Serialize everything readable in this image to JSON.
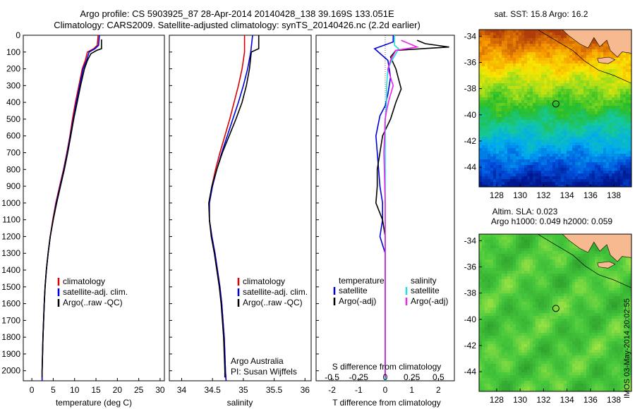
{
  "header": {
    "line1": "Argo profile: CS 5903925_87 28-Apr-2014 20140428_138 39.169S 133.051E",
    "line2": "Climatology: CARS2009. Satellite-adjusted climatology: synTS_20140426.nc (2.2d earlier)"
  },
  "colors": {
    "climatology": "#dd0000",
    "satellite": "#0000dd",
    "argo": "#000000",
    "sal_satellite": "#22dddd",
    "sal_argo": "#ee22ee",
    "land": "#f6b990"
  },
  "depth_ticks": [
    "0",
    "100",
    "200",
    "300",
    "400",
    "500",
    "600",
    "700",
    "800",
    "900",
    "1000",
    "1100",
    "1200",
    "1300",
    "1400",
    "1500",
    "1600",
    "1700",
    "1800",
    "1900",
    "2000"
  ],
  "chart_data": [
    {
      "type": "line",
      "id": "temperature",
      "xlabel": "temperature (deg C)",
      "x_ticks": [
        "0",
        "5",
        "10",
        "15",
        "20",
        "25",
        "30"
      ],
      "xlim": [
        -2,
        31
      ],
      "ylim": [
        2060,
        0
      ],
      "legend": [
        "climatology",
        "satellite-adj. clim.",
        "Argo(..raw -QC)"
      ],
      "legend_position": "lower-center",
      "series": [
        {
          "name": "climatology",
          "points": [
            [
              15.5,
              0
            ],
            [
              15.3,
              60
            ],
            [
              14.5,
              80
            ],
            [
              13,
              100
            ],
            [
              12.5,
              150
            ],
            [
              11.8,
              200
            ],
            [
              11,
              300
            ],
            [
              10.2,
              400
            ],
            [
              9.5,
              500
            ],
            [
              8.9,
              600
            ],
            [
              8.2,
              700
            ],
            [
              7.4,
              800
            ],
            [
              6.5,
              900
            ],
            [
              5.6,
              1000
            ],
            [
              4.9,
              1100
            ],
            [
              4.3,
              1200
            ],
            [
              3.8,
              1300
            ],
            [
              3.4,
              1400
            ],
            [
              3.1,
              1500
            ],
            [
              2.9,
              1600
            ],
            [
              2.75,
              1700
            ],
            [
              2.6,
              1800
            ],
            [
              2.5,
              1900
            ],
            [
              2.4,
              2000
            ],
            [
              2.4,
              2060
            ]
          ]
        },
        {
          "name": "satellite-adj. clim.",
          "points": [
            [
              15.8,
              0
            ],
            [
              15.6,
              60
            ],
            [
              14.8,
              80
            ],
            [
              13.4,
              100
            ],
            [
              12.8,
              150
            ],
            [
              12,
              200
            ],
            [
              11.2,
              300
            ],
            [
              10.4,
              400
            ],
            [
              9.7,
              500
            ],
            [
              9,
              600
            ],
            [
              8.3,
              700
            ],
            [
              7.5,
              800
            ],
            [
              6.6,
              900
            ],
            [
              5.7,
              1000
            ],
            [
              5,
              1100
            ],
            [
              4.3,
              1200
            ],
            [
              3.8,
              1300
            ],
            [
              3.4,
              1400
            ],
            [
              3.1,
              1500
            ],
            [
              2.9,
              1600
            ],
            [
              2.75,
              1700
            ],
            [
              2.6,
              1800
            ],
            [
              2.5,
              1900
            ],
            [
              2.4,
              2000
            ],
            [
              2.4,
              2060
            ]
          ]
        },
        {
          "name": "Argo(..raw -QC)",
          "points": [
            [
              16.3,
              25
            ],
            [
              16.3,
              80
            ],
            [
              15.2,
              90
            ],
            [
              13.8,
              110
            ],
            [
              13,
              150
            ],
            [
              12.3,
              200
            ],
            [
              11.4,
              300
            ],
            [
              10.6,
              400
            ],
            [
              9.8,
              500
            ],
            [
              9.1,
              600
            ],
            [
              8.4,
              700
            ],
            [
              7.6,
              800
            ],
            [
              6.7,
              900
            ],
            [
              5.8,
              1000
            ],
            [
              5,
              1100
            ],
            [
              4.3,
              1200
            ],
            [
              3.8,
              1300
            ],
            [
              3.4,
              1400
            ],
            [
              3.1,
              1500
            ],
            [
              2.9,
              1600
            ],
            [
              2.75,
              1700
            ],
            [
              2.6,
              1800
            ],
            [
              2.5,
              1900
            ],
            [
              2.4,
              2000
            ],
            [
              2.4,
              2040
            ]
          ]
        }
      ]
    },
    {
      "type": "line",
      "id": "salinity",
      "xlabel": "salinity",
      "x_ticks": [
        "34",
        "34.5",
        "35",
        "35.5",
        "36"
      ],
      "xlim": [
        33.8,
        36.1
      ],
      "ylim": [
        2060,
        0
      ],
      "legend": [
        "climatology",
        "satellite-adj. clim.",
        "Argo(..raw -QC)"
      ],
      "legend_position": "lower-center",
      "annotations": [
        "Argo Australia",
        "PI: Susan Wijffels"
      ],
      "series": [
        {
          "name": "climatology",
          "points": [
            [
              35.02,
              0
            ],
            [
              35.02,
              100
            ],
            [
              34.98,
              200
            ],
            [
              34.92,
              300
            ],
            [
              34.85,
              400
            ],
            [
              34.78,
              500
            ],
            [
              34.7,
              600
            ],
            [
              34.62,
              700
            ],
            [
              34.55,
              800
            ],
            [
              34.49,
              900
            ],
            [
              34.45,
              1000
            ],
            [
              34.45,
              1100
            ],
            [
              34.49,
              1200
            ],
            [
              34.54,
              1300
            ],
            [
              34.58,
              1400
            ],
            [
              34.62,
              1500
            ],
            [
              34.65,
              1600
            ],
            [
              34.67,
              1700
            ],
            [
              34.69,
              1800
            ],
            [
              34.7,
              1900
            ],
            [
              34.71,
              2000
            ],
            [
              34.72,
              2060
            ]
          ]
        },
        {
          "name": "satellite-adj. clim.",
          "points": [
            [
              35.15,
              0
            ],
            [
              35.12,
              100
            ],
            [
              35.07,
              200
            ],
            [
              35,
              300
            ],
            [
              34.92,
              400
            ],
            [
              34.83,
              500
            ],
            [
              34.74,
              600
            ],
            [
              34.65,
              700
            ],
            [
              34.57,
              800
            ],
            [
              34.5,
              900
            ],
            [
              34.45,
              1000
            ],
            [
              34.45,
              1100
            ],
            [
              34.49,
              1200
            ],
            [
              34.54,
              1300
            ],
            [
              34.58,
              1400
            ],
            [
              34.62,
              1500
            ],
            [
              34.65,
              1600
            ],
            [
              34.67,
              1700
            ],
            [
              34.69,
              1800
            ],
            [
              34.7,
              1900
            ],
            [
              34.71,
              2000
            ],
            [
              34.72,
              2060
            ]
          ]
        },
        {
          "name": "Argo(..raw -QC)",
          "points": [
            [
              35.25,
              0
            ],
            [
              35.25,
              80
            ],
            [
              35.13,
              100
            ],
            [
              35.1,
              200
            ],
            [
              35.05,
              300
            ],
            [
              34.98,
              400
            ],
            [
              34.88,
              500
            ],
            [
              34.77,
              600
            ],
            [
              34.66,
              700
            ],
            [
              34.57,
              800
            ],
            [
              34.49,
              900
            ],
            [
              34.44,
              1000
            ],
            [
              34.45,
              1100
            ],
            [
              34.48,
              1200
            ],
            [
              34.53,
              1300
            ],
            [
              34.57,
              1400
            ],
            [
              34.61,
              1500
            ],
            [
              34.64,
              1600
            ],
            [
              34.66,
              1700
            ],
            [
              34.68,
              1800
            ],
            [
              34.69,
              1900
            ],
            [
              34.7,
              2000
            ],
            [
              34.7,
              2040
            ]
          ]
        }
      ]
    },
    {
      "type": "line",
      "id": "differences",
      "xlabel": "T difference from climatology",
      "xlabel_top": "S difference from climatology",
      "x_ticks": [
        "-2",
        "-1",
        "0",
        "1",
        "2"
      ],
      "x_ticks_top": [
        "-0.5",
        "-0.25",
        "0",
        "0.25",
        "0.5"
      ],
      "xlim": [
        -2.6,
        2.6
      ],
      "ylim": [
        2060,
        0
      ],
      "legend_left_title": "temperature",
      "legend_left": [
        "satellite",
        "Argo(-adj)"
      ],
      "legend_right_title": "salinity",
      "legend_right": [
        "satellite",
        "Argo(-adj)"
      ],
      "series": [
        {
          "name": "temperature satellite",
          "points": [
            [
              0.3,
              0
            ],
            [
              0.3,
              40
            ],
            [
              -0.4,
              80
            ],
            [
              0.1,
              150
            ],
            [
              0.2,
              250
            ],
            [
              0.1,
              350
            ],
            [
              0,
              420
            ],
            [
              -0.2,
              480
            ],
            [
              -0.35,
              600
            ],
            [
              -0.3,
              700
            ],
            [
              -0.25,
              800
            ],
            [
              -0.2,
              900
            ],
            [
              -0.1,
              1000
            ],
            [
              -0.1,
              1100
            ],
            [
              -0.2,
              1200
            ],
            [
              0,
              1300
            ],
            [
              0,
              2060
            ]
          ]
        },
        {
          "name": "temperature Argo(-adj)",
          "points": [
            [
              1.2,
              30
            ],
            [
              1.5,
              50
            ],
            [
              2.4,
              70
            ],
            [
              0.4,
              90
            ],
            [
              0.2,
              130
            ],
            [
              0.4,
              200
            ],
            [
              0.5,
              260
            ],
            [
              0.6,
              320
            ],
            [
              0.4,
              400
            ],
            [
              0.2,
              500
            ],
            [
              -0.1,
              600
            ],
            [
              -0.2,
              700
            ],
            [
              -0.3,
              800
            ],
            [
              -0.3,
              900
            ],
            [
              -0.35,
              1000
            ],
            [
              -0.1,
              1100
            ],
            [
              0,
              1200
            ],
            [
              0,
              2040
            ]
          ]
        },
        {
          "name": "salinity satellite",
          "points": [
            [
              0.35,
              0
            ],
            [
              0.35,
              60
            ],
            [
              0.5,
              80
            ],
            [
              0.4,
              110
            ],
            [
              0.25,
              150
            ],
            [
              0.1,
              200
            ],
            [
              0.05,
              300
            ],
            [
              0.05,
              400
            ],
            [
              0,
              500
            ],
            [
              0,
              700
            ],
            [
              0,
              1000
            ],
            [
              0,
              2060
            ]
          ]
        },
        {
          "name": "salinity Argo(-adj)",
          "points": [
            [
              0.6,
              30
            ],
            [
              1.2,
              70
            ],
            [
              0.4,
              90
            ],
            [
              0.2,
              150
            ],
            [
              0.1,
              200
            ],
            [
              0.2,
              250
            ],
            [
              0.3,
              300
            ],
            [
              0.15,
              380
            ],
            [
              0.05,
              450
            ],
            [
              0,
              500
            ],
            [
              -0.05,
              700
            ],
            [
              0,
              1000
            ],
            [
              0,
              2040
            ]
          ]
        }
      ]
    },
    {
      "type": "heatmap",
      "id": "sst-map",
      "title": "sat. SST: 15.8 Argo: 16.2",
      "x_ticks": [
        "128",
        "130",
        "132",
        "134",
        "136",
        "138"
      ],
      "y_ticks": [
        "-34",
        "-36",
        "-38",
        "-40",
        "-42",
        "-44"
      ],
      "xlim": [
        126.5,
        139.5
      ],
      "ylim": [
        -45.5,
        -33.5
      ],
      "marker": {
        "lon": 133.051,
        "lat": -39.169
      }
    },
    {
      "type": "heatmap",
      "id": "sla-map",
      "title_line1": "Altim. SLA: 0.023",
      "title_line2": "Argo h1000: 0.049 h2000: 0.059",
      "x_ticks": [
        "128",
        "130",
        "132",
        "134",
        "136",
        "138"
      ],
      "y_ticks": [
        "-34",
        "-36",
        "-38",
        "-40",
        "-42",
        "-44"
      ],
      "xlim": [
        126.5,
        139.5
      ],
      "ylim": [
        -45.5,
        -33.5
      ],
      "marker": {
        "lon": 133.051,
        "lat": -39.169
      }
    }
  ],
  "credit": "IMOS 03-May-2014 20:02:55"
}
